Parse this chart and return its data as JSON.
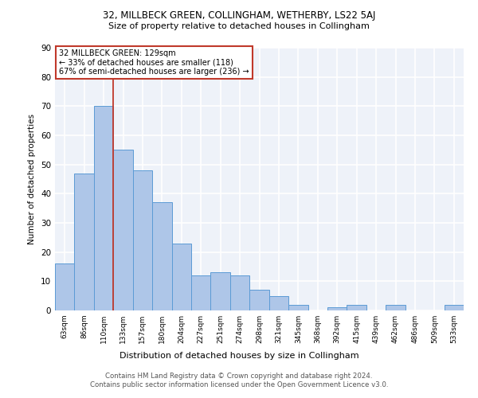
{
  "title1": "32, MILLBECK GREEN, COLLINGHAM, WETHERBY, LS22 5AJ",
  "title2": "Size of property relative to detached houses in Collingham",
  "xlabel": "Distribution of detached houses by size in Collingham",
  "ylabel": "Number of detached properties",
  "categories": [
    "63sqm",
    "86sqm",
    "110sqm",
    "133sqm",
    "157sqm",
    "180sqm",
    "204sqm",
    "227sqm",
    "251sqm",
    "274sqm",
    "298sqm",
    "321sqm",
    "345sqm",
    "368sqm",
    "392sqm",
    "415sqm",
    "439sqm",
    "462sqm",
    "486sqm",
    "509sqm",
    "533sqm"
  ],
  "values": [
    16,
    47,
    70,
    55,
    48,
    37,
    23,
    12,
    13,
    12,
    7,
    5,
    2,
    0,
    1,
    2,
    0,
    2,
    0,
    0,
    2
  ],
  "bar_color": "#aec6e8",
  "bar_edge_color": "#5b9bd5",
  "vline_index": 2.5,
  "vline_color": "#c0392b",
  "annotation_text": "32 MILLBECK GREEN: 129sqm\n← 33% of detached houses are smaller (118)\n67% of semi-detached houses are larger (236) →",
  "annotation_box_color": "#ffffff",
  "annotation_box_edge": "#c0392b",
  "ylim": [
    0,
    90
  ],
  "yticks": [
    0,
    10,
    20,
    30,
    40,
    50,
    60,
    70,
    80,
    90
  ],
  "footer": "Contains HM Land Registry data © Crown copyright and database right 2024.\nContains public sector information licensed under the Open Government Licence v3.0.",
  "bg_color": "#eef2f9",
  "grid_color": "#ffffff"
}
